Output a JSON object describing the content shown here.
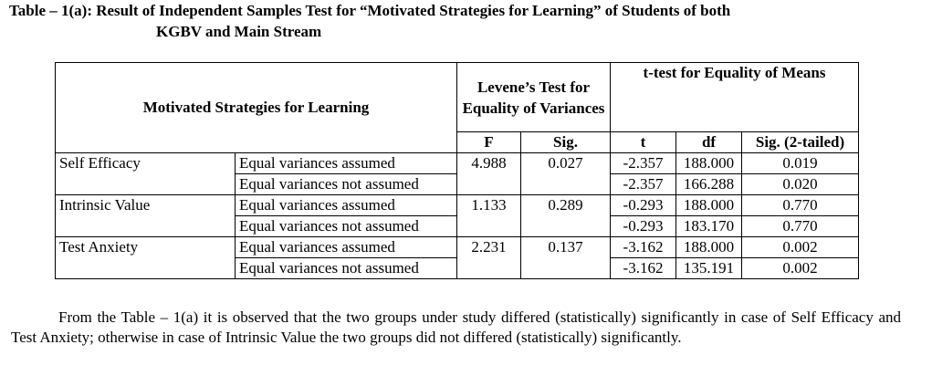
{
  "header": {
    "title_lines": [
      "Table – 1(a): Result of Independent Samples Test for “Motivated Strategies for Learning” of Students of both",
      "KGBV and Main Stream"
    ]
  },
  "table": {
    "headers": {
      "variable": "Motivated Strategies for Learning",
      "levene": "Levene’s Test for Equality of Variances",
      "ttest": "t-test for Equality of Means",
      "sub": [
        "F",
        "Sig.",
        "t",
        "df",
        "Sig. (2-tailed)"
      ]
    },
    "groups": [
      {
        "label": "Self Efficacy",
        "F": "4.988",
        "sig": "0.027",
        "rows": [
          {
            "assumption": "Equal variances assumed",
            "t": "-2.357",
            "df": "188.000",
            "sig2": "0.019"
          },
          {
            "assumption": "Equal variances not assumed",
            "t": "-2.357",
            "df": "166.288",
            "sig2": "0.020"
          }
        ]
      },
      {
        "label": "Intrinsic Value",
        "F": "1.133",
        "sig": "0.289",
        "rows": [
          {
            "assumption": "Equal variances assumed",
            "t": "-0.293",
            "df": "188.000",
            "sig2": "0.770"
          },
          {
            "assumption": "Equal variances not assumed",
            "t": "-0.293",
            "df": "183.170",
            "sig2": "0.770"
          }
        ]
      },
      {
        "label": "Test Anxiety",
        "F": "2.231",
        "sig": "0.137",
        "rows": [
          {
            "assumption": "Equal variances assumed",
            "t": "-3.162",
            "df": "188.000",
            "sig2": "0.002"
          },
          {
            "assumption": "Equal variances not assumed",
            "t": "-3.162",
            "df": "135.191",
            "sig2": "0.002"
          }
        ]
      }
    ]
  },
  "paragraph": "From the Table – 1(a) it is observed that the two groups under study differed (statistically) significantly in case of Self Efficacy and Test Anxiety; otherwise in case of Intrinsic Value the two groups did not differed (statistically) significantly."
}
